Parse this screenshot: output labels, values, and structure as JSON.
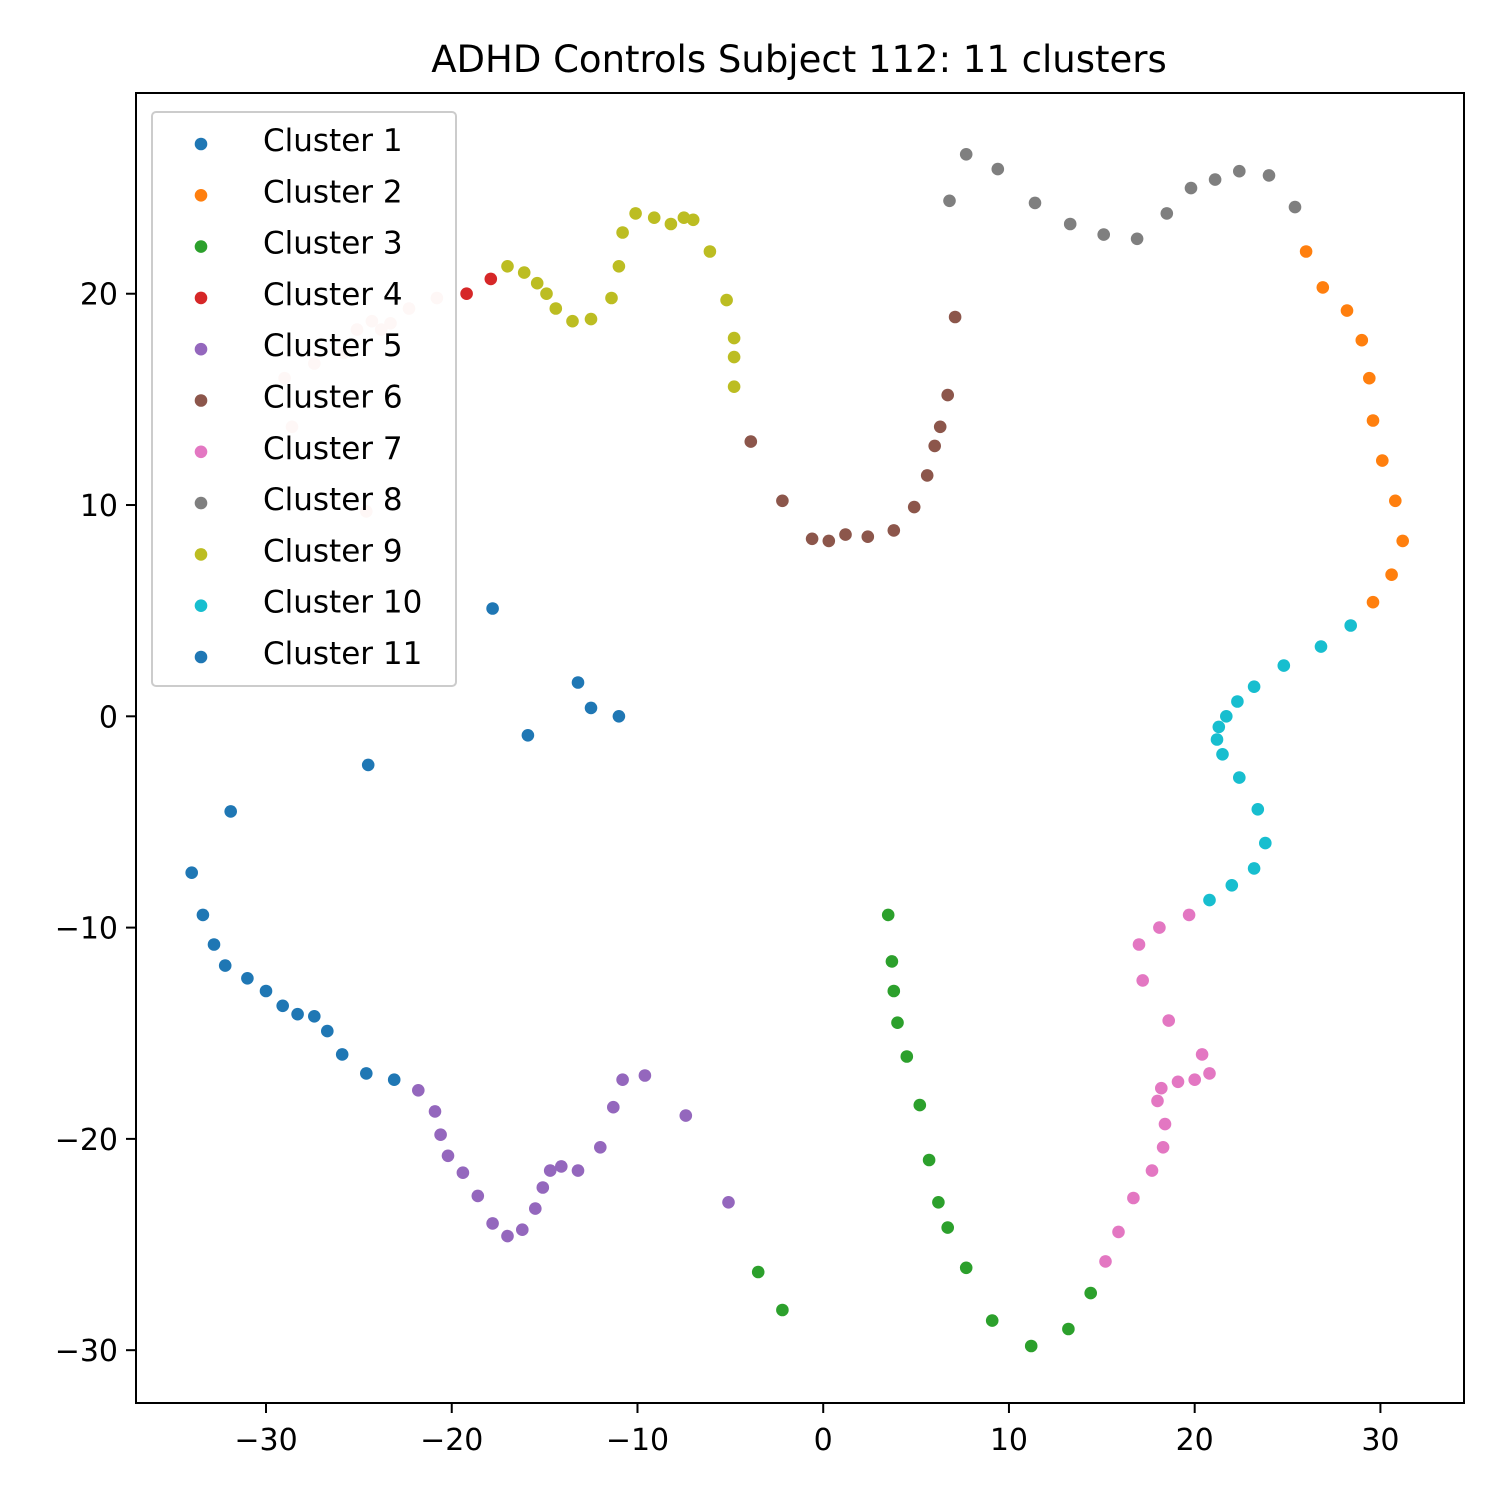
{
  "chart_data": {
    "type": "scatter",
    "title": "ADHD Controls Subject 112: 11 clusters",
    "xlabel": "",
    "ylabel": "",
    "xlim": [
      -37,
      34.5
    ],
    "ylim": [
      -32.5,
      29.5
    ],
    "x_ticks": [
      -30,
      -20,
      -10,
      0,
      10,
      20,
      30
    ],
    "x_tick_labels": [
      "−30",
      "−20",
      "−10",
      "0",
      "10",
      "20",
      "30"
    ],
    "y_ticks": [
      -30,
      -20,
      -10,
      0,
      10,
      20
    ],
    "y_tick_labels": [
      "−30",
      "−20",
      "−10",
      "0",
      "10",
      "20"
    ],
    "grid": false,
    "legend_position": "upper-left",
    "series": [
      {
        "name": "Cluster 1",
        "color": "#1f77b4",
        "points": [
          [
            -17.8,
            5.1
          ],
          [
            -13.2,
            1.6
          ],
          [
            -12.5,
            0.4
          ],
          [
            -11.0,
            0.0
          ],
          [
            -15.9,
            -0.9
          ],
          [
            -24.5,
            -2.3
          ],
          [
            -31.9,
            -4.5
          ]
        ]
      },
      {
        "name": "Cluster 2",
        "color": "#ff7f0e",
        "points": [
          [
            26.0,
            22.0
          ],
          [
            26.9,
            20.3
          ],
          [
            28.2,
            19.2
          ],
          [
            29.0,
            17.8
          ],
          [
            29.4,
            16.0
          ],
          [
            29.6,
            14.0
          ],
          [
            30.1,
            12.1
          ],
          [
            30.8,
            10.2
          ],
          [
            31.2,
            8.3
          ],
          [
            30.6,
            6.7
          ],
          [
            29.6,
            5.4
          ]
        ]
      },
      {
        "name": "Cluster 3",
        "color": "#2ca02c",
        "points": [
          [
            3.5,
            -9.4
          ],
          [
            3.7,
            -11.6
          ],
          [
            3.8,
            -13.0
          ],
          [
            4.0,
            -14.5
          ],
          [
            4.5,
            -16.1
          ],
          [
            5.2,
            -18.4
          ],
          [
            5.7,
            -21.0
          ],
          [
            6.2,
            -23.0
          ],
          [
            6.7,
            -24.2
          ],
          [
            7.7,
            -26.1
          ],
          [
            9.1,
            -28.6
          ],
          [
            11.2,
            -29.8
          ],
          [
            13.2,
            -29.0
          ],
          [
            14.4,
            -27.3
          ],
          [
            -3.5,
            -26.3
          ],
          [
            -2.2,
            -28.1
          ]
        ]
      },
      {
        "name": "Cluster 4",
        "color": "#d62728",
        "points": [
          [
            -19.2,
            20.0
          ],
          [
            -17.9,
            20.7
          ]
        ]
      },
      {
        "name": "Cluster 5",
        "color": "#9467bd",
        "points": [
          [
            -21.8,
            -17.7
          ],
          [
            -20.9,
            -18.7
          ],
          [
            -20.6,
            -19.8
          ],
          [
            -20.2,
            -20.8
          ],
          [
            -19.4,
            -21.6
          ],
          [
            -18.6,
            -22.7
          ],
          [
            -17.8,
            -24.0
          ],
          [
            -17.0,
            -24.6
          ],
          [
            -16.2,
            -24.3
          ],
          [
            -15.5,
            -23.3
          ],
          [
            -15.1,
            -22.3
          ],
          [
            -14.7,
            -21.5
          ],
          [
            -14.1,
            -21.3
          ],
          [
            -13.2,
            -21.5
          ],
          [
            -12.0,
            -20.4
          ],
          [
            -11.3,
            -18.5
          ],
          [
            -10.8,
            -17.2
          ],
          [
            -9.6,
            -17.0
          ],
          [
            -7.4,
            -18.9
          ],
          [
            -5.1,
            -23.0
          ]
        ]
      },
      {
        "name": "Cluster 6",
        "color": "#8c564b",
        "points": [
          [
            -3.9,
            13.0
          ],
          [
            -2.2,
            10.2
          ],
          [
            -0.6,
            8.4
          ],
          [
            0.3,
            8.3
          ],
          [
            1.2,
            8.6
          ],
          [
            2.4,
            8.5
          ],
          [
            3.8,
            8.8
          ],
          [
            4.9,
            9.9
          ],
          [
            5.6,
            11.4
          ],
          [
            6.0,
            12.8
          ],
          [
            6.3,
            13.7
          ],
          [
            6.7,
            15.2
          ],
          [
            7.1,
            18.9
          ]
        ]
      },
      {
        "name": "Cluster 7",
        "color": "#e377c2",
        "points": [
          [
            17.0,
            -10.8
          ],
          [
            18.1,
            -10.0
          ],
          [
            19.7,
            -9.4
          ],
          [
            17.2,
            -12.5
          ],
          [
            18.6,
            -14.4
          ],
          [
            20.4,
            -16.0
          ],
          [
            20.8,
            -16.9
          ],
          [
            19.1,
            -17.3
          ],
          [
            18.2,
            -17.6
          ],
          [
            18.0,
            -18.2
          ],
          [
            18.4,
            -19.3
          ],
          [
            18.3,
            -20.4
          ],
          [
            17.7,
            -21.5
          ],
          [
            16.7,
            -22.8
          ],
          [
            15.9,
            -24.4
          ],
          [
            15.2,
            -25.8
          ],
          [
            20.0,
            -17.2
          ]
        ]
      },
      {
        "name": "Cluster 8",
        "color": "#7f7f7f",
        "points": [
          [
            6.8,
            24.4
          ],
          [
            7.7,
            26.6
          ],
          [
            9.4,
            25.9
          ],
          [
            11.4,
            24.3
          ],
          [
            13.3,
            23.3
          ],
          [
            15.1,
            22.8
          ],
          [
            16.9,
            22.6
          ],
          [
            18.5,
            23.8
          ],
          [
            19.8,
            25.0
          ],
          [
            21.1,
            25.4
          ],
          [
            22.4,
            25.8
          ],
          [
            24.0,
            25.6
          ],
          [
            25.4,
            24.1
          ]
        ]
      },
      {
        "name": "Cluster 9",
        "color": "#bcbd22",
        "points": [
          [
            -17.0,
            21.3
          ],
          [
            -16.1,
            21.0
          ],
          [
            -15.4,
            20.5
          ],
          [
            -14.9,
            20.0
          ],
          [
            -14.4,
            19.3
          ],
          [
            -13.5,
            18.7
          ],
          [
            -12.5,
            18.8
          ],
          [
            -11.4,
            19.8
          ],
          [
            -11.0,
            21.3
          ],
          [
            -10.8,
            22.9
          ],
          [
            -10.1,
            23.8
          ],
          [
            -9.1,
            23.6
          ],
          [
            -8.2,
            23.3
          ],
          [
            -7.5,
            23.6
          ],
          [
            -7.0,
            23.5
          ],
          [
            -6.1,
            22.0
          ],
          [
            -5.2,
            19.7
          ],
          [
            -4.8,
            17.9
          ],
          [
            -4.8,
            17.0
          ],
          [
            -4.8,
            15.6
          ]
        ]
      },
      {
        "name": "Cluster 10",
        "color": "#17becf",
        "points": [
          [
            28.4,
            4.3
          ],
          [
            26.8,
            3.3
          ],
          [
            24.8,
            2.4
          ],
          [
            23.2,
            1.4
          ],
          [
            22.3,
            0.7
          ],
          [
            21.7,
            0.0
          ],
          [
            21.3,
            -0.5
          ],
          [
            21.2,
            -1.1
          ],
          [
            21.5,
            -1.8
          ],
          [
            22.4,
            -2.9
          ],
          [
            23.4,
            -4.4
          ],
          [
            23.8,
            -6.0
          ],
          [
            23.2,
            -7.2
          ],
          [
            22.0,
            -8.0
          ],
          [
            20.8,
            -8.7
          ]
        ]
      },
      {
        "name": "Cluster 11",
        "color": "#1f77b4",
        "points": [
          [
            -34.0,
            -7.4
          ],
          [
            -33.4,
            -9.4
          ],
          [
            -32.8,
            -10.8
          ],
          [
            -32.2,
            -11.8
          ],
          [
            -31.0,
            -12.4
          ],
          [
            -30.0,
            -13.0
          ],
          [
            -29.1,
            -13.7
          ],
          [
            -28.3,
            -14.1
          ],
          [
            -27.4,
            -14.2
          ],
          [
            -26.7,
            -14.9
          ],
          [
            -25.9,
            -16.0
          ],
          [
            -24.6,
            -16.9
          ],
          [
            -23.1,
            -17.2
          ]
        ]
      },
      {
        "name": "",
        "color": "#f7d6d0",
        "points": [
          [
            -22.3,
            19.3
          ],
          [
            -20.8,
            19.8
          ],
          [
            -23.3,
            18.6
          ],
          [
            -23.8,
            18.3
          ],
          [
            -24.3,
            18.7
          ],
          [
            -25.1,
            18.3
          ],
          [
            -25.8,
            17.2
          ],
          [
            -27.4,
            16.7
          ],
          [
            -29.0,
            16.0
          ],
          [
            -28.6,
            13.7
          ],
          [
            -24.6,
            9.7
          ]
        ]
      }
    ]
  }
}
